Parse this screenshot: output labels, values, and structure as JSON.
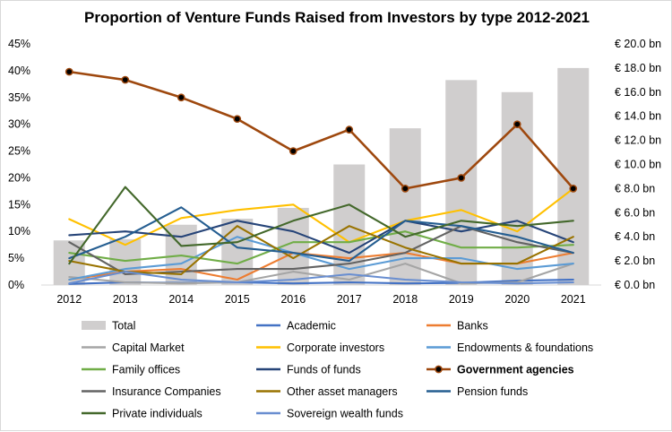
{
  "chart_data": {
    "type": "bar+line",
    "title": "Proportion of Venture Funds Raised from Investors by type 2012-2021",
    "categories": [
      "2012",
      "2013",
      "2014",
      "2015",
      "2016",
      "2017",
      "2018",
      "2019",
      "2020",
      "2021"
    ],
    "left_axis": {
      "min": 0,
      "max": 45,
      "step": 5,
      "format": "percent",
      "ticks": [
        "0%",
        "5%",
        "10%",
        "15%",
        "20%",
        "25%",
        "30%",
        "35%",
        "40%",
        "45%"
      ]
    },
    "right_axis": {
      "min": 0,
      "max": 20,
      "step": 2,
      "format": "euro_bn",
      "ticks": [
        "€ 0.0 bn",
        "€ 2.0 bn",
        "€ 4.0 bn",
        "€ 6.0 bn",
        "€ 8.0 bn",
        "€ 10.0 bn",
        "€ 12.0 bn",
        "€ 14.0 bn",
        "€ 16.0 bn",
        "€ 18.0 bn",
        "€ 20.0 bn"
      ]
    },
    "bars": {
      "name": "Total",
      "axis": "right",
      "color": "#d0cece",
      "values": [
        3.7,
        3.8,
        5.0,
        5.5,
        6.4,
        10.0,
        13.0,
        17.0,
        16.0,
        18.0
      ]
    },
    "series": [
      {
        "name": "Academic",
        "color": "#4472c4",
        "marker": false,
        "bold": false,
        "values": [
          0.2,
          0.5,
          0.4,
          0.5,
          0.3,
          0.5,
          0.3,
          0.4,
          0.8,
          1.0
        ]
      },
      {
        "name": "Banks",
        "color": "#ed7d31",
        "marker": false,
        "bold": false,
        "values": [
          1.0,
          2.5,
          3.0,
          1.0,
          6.0,
          5.0,
          6.0,
          4.0,
          4.0,
          6.0
        ]
      },
      {
        "name": "Capital Market",
        "color": "#a5a5a5",
        "marker": false,
        "bold": false,
        "values": [
          1.5,
          0.5,
          0.3,
          0.5,
          2.5,
          1.0,
          4.0,
          0.3,
          0.5,
          4.0
        ]
      },
      {
        "name": "Corporate investors",
        "color": "#ffc000",
        "marker": false,
        "bold": false,
        "values": [
          12.3,
          7.5,
          12.5,
          14.0,
          15.0,
          8.0,
          12.0,
          14.0,
          10.0,
          18.0
        ]
      },
      {
        "name": "Endowments & foundations",
        "color": "#5b9bd5",
        "marker": false,
        "bold": false,
        "values": [
          1.0,
          3.0,
          4.0,
          9.0,
          6.0,
          3.0,
          5.0,
          5.0,
          3.0,
          4.0
        ]
      },
      {
        "name": "Family offices",
        "color": "#70ad47",
        "marker": false,
        "bold": false,
        "values": [
          6.0,
          4.5,
          5.5,
          4.0,
          8.0,
          8.0,
          10.0,
          7.0,
          7.0,
          7.5
        ]
      },
      {
        "name": "Funds of funds",
        "color": "#264478",
        "marker": false,
        "bold": false,
        "values": [
          9.3,
          10.0,
          9.0,
          12.0,
          10.0,
          6.0,
          12.0,
          10.0,
          12.0,
          8.0
        ]
      },
      {
        "name": "Government agencies",
        "color": "#9e480e",
        "marker": true,
        "bold": true,
        "values": [
          39.8,
          38.3,
          35.0,
          31.0,
          25.0,
          29.0,
          18.0,
          20.0,
          30.0,
          18.0
        ]
      },
      {
        "name": "Insurance Companies",
        "color": "#636363",
        "marker": false,
        "bold": false,
        "values": [
          8.0,
          2.0,
          2.5,
          3.0,
          3.0,
          4.0,
          6.0,
          11.0,
          8.0,
          6.0
        ]
      },
      {
        "name": "Other asset managers",
        "color": "#997300",
        "marker": false,
        "bold": false,
        "values": [
          4.5,
          2.5,
          2.0,
          11.0,
          5.0,
          11.0,
          7.0,
          4.0,
          4.0,
          9.0
        ]
      },
      {
        "name": "Pension funds",
        "color": "#255e91",
        "marker": false,
        "bold": false,
        "values": [
          5.0,
          9.0,
          14.5,
          7.0,
          6.0,
          4.5,
          12.0,
          11.0,
          9.0,
          6.0
        ]
      },
      {
        "name": "Private individuals",
        "color": "#43682b",
        "marker": false,
        "bold": false,
        "values": [
          4.0,
          18.3,
          7.3,
          8.0,
          12.0,
          15.0,
          9.0,
          12.0,
          11.0,
          12.0
        ]
      },
      {
        "name": "Sovereign wealth funds",
        "color": "#698ed0",
        "marker": false,
        "bold": false,
        "values": [
          0.3,
          2.5,
          1.0,
          0.5,
          1.0,
          2.0,
          1.0,
          0.5,
          0.3,
          0.5
        ]
      }
    ],
    "legend": {
      "position": "bottom",
      "items": [
        "Total",
        "Academic",
        "Banks",
        "Capital Market",
        "Corporate investors",
        "Endowments & foundations",
        "Family offices",
        "Funds of funds",
        "Government agencies",
        "Insurance Companies",
        "Other asset managers",
        "Pension funds",
        "Private individuals",
        "Sovereign wealth funds"
      ]
    }
  }
}
